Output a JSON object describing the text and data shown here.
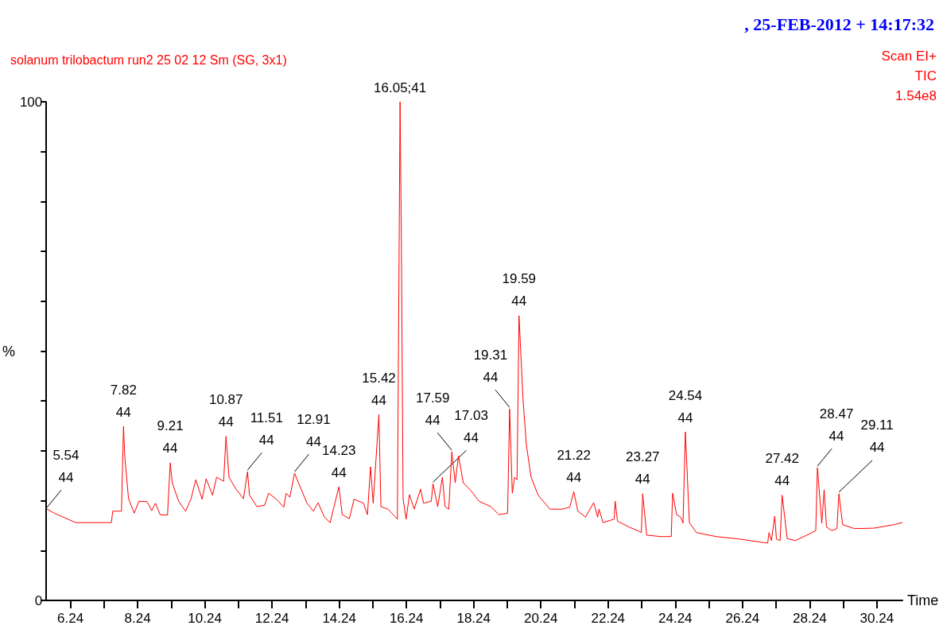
{
  "chart_data": {
    "type": "line",
    "title": "solanum trilobactum run2 25 02 12 Sm (SG, 3x1)",
    "subtitle": ", 25-FEB-2012 + 14:17:32",
    "xlabel": "Time",
    "ylabel": "%",
    "series": [
      {
        "color": "#ff0000",
        "x": [
          5.54,
          5.76,
          6.4,
          7.46,
          7.5,
          7.76,
          7.82,
          7.86,
          7.97,
          8.14,
          8.28,
          8.52,
          8.66,
          8.77,
          8.91,
          9.13,
          9.21,
          9.27,
          9.46,
          9.67,
          9.83,
          9.97,
          10.16,
          10.28,
          10.47,
          10.59,
          10.8,
          10.87,
          10.96,
          11.17,
          11.39,
          11.51,
          11.57,
          11.79,
          12.02,
          12.14,
          12.37,
          12.59,
          12.66,
          12.77,
          12.91,
          13.28,
          13.47,
          13.61,
          13.8,
          13.97,
          14.23,
          14.33,
          14.54,
          14.68,
          14.96,
          15.08,
          15.17,
          15.25,
          15.42,
          15.48,
          15.69,
          15.97,
          16.05,
          16.09,
          16.14,
          16.23,
          16.33,
          16.47,
          16.66,
          16.75,
          16.98,
          17.03,
          17.17,
          17.31,
          17.39,
          17.5,
          17.59,
          17.69,
          17.79,
          17.93,
          18.16,
          18.4,
          18.75,
          18.99,
          19.25,
          19.31,
          19.39,
          19.46,
          19.53,
          19.59,
          19.71,
          19.81,
          19.95,
          20.16,
          20.51,
          20.87,
          21.1,
          21.22,
          21.34,
          21.57,
          21.81,
          21.93,
          21.97,
          22.09,
          22.42,
          22.45,
          22.52,
          22.87,
          23.15,
          23.23,
          23.27,
          23.39,
          23.81,
          24.12,
          24.16,
          24.28,
          24.4,
          24.47,
          24.54,
          24.66,
          24.87,
          25.46,
          26.16,
          26.87,
          26.99,
          27.03,
          27.1,
          27.2,
          27.25,
          27.36,
          27.42,
          27.57,
          27.81,
          28.16,
          28.42,
          28.47,
          28.6,
          28.67,
          28.74,
          28.9,
          29.05,
          29.11,
          29.22,
          29.57,
          30.16,
          30.75,
          30.99
        ],
        "values": [
          18.3,
          17.5,
          15.6,
          15.6,
          17.9,
          17.9,
          34.9,
          28.7,
          20.4,
          17.5,
          19.9,
          19.8,
          18.0,
          19.5,
          17.2,
          17.1,
          27.6,
          23.6,
          19.9,
          17.9,
          20.4,
          24.2,
          20.3,
          24.4,
          21.1,
          24.7,
          23.9,
          32.9,
          24.7,
          22.3,
          20.4,
          25.8,
          21.1,
          18.8,
          19.1,
          21.5,
          20.3,
          18.7,
          21.5,
          20.7,
          25.5,
          19.5,
          17.9,
          19.6,
          16.7,
          15.6,
          22.8,
          17.2,
          16.4,
          20.3,
          19.5,
          17.2,
          26.8,
          19.5,
          37.3,
          18.8,
          18.3,
          16.3,
          100,
          71.0,
          20.4,
          16.3,
          21.2,
          18.3,
          22.3,
          19.5,
          19.9,
          23.4,
          18.8,
          24.7,
          18.8,
          18.3,
          29.8,
          23.6,
          29.0,
          23.6,
          22.0,
          19.9,
          18.8,
          17.2,
          17.5,
          38.4,
          21.5,
          24.7,
          24.2,
          57.1,
          40.2,
          31.1,
          24.7,
          21.1,
          18.3,
          18.3,
          18.7,
          21.8,
          17.9,
          16.7,
          19.6,
          16.7,
          18.3,
          15.6,
          16.3,
          19.9,
          15.9,
          14.7,
          13.9,
          13.6,
          21.4,
          13.1,
          12.8,
          12.8,
          21.5,
          17.2,
          16.7,
          15.5,
          33.8,
          15.6,
          13.6,
          12.8,
          12.3,
          11.6,
          11.5,
          13.6,
          12.0,
          16.9,
          12.3,
          12.0,
          21.1,
          12.4,
          12.0,
          13.1,
          14.0,
          26.6,
          15.5,
          22.2,
          14.7,
          14.0,
          14.4,
          21.4,
          15.2,
          14.4,
          14.5,
          15.2,
          15.6
        ]
      }
    ],
    "xlim": [
      5.5,
      31.0
    ],
    "xticks": [
      6.24,
      {
        "value": 7.24,
        "label": null
      },
      8.24,
      {
        "value": 9.24,
        "label": null
      },
      10.24,
      {
        "value": 11.24,
        "label": null
      },
      12.24,
      {
        "value": 13.24,
        "label": null
      },
      14.24,
      {
        "value": 15.24,
        "label": null
      },
      16.24,
      {
        "value": 17.24,
        "label": null
      },
      18.24,
      {
        "value": 19.24,
        "label": null
      },
      20.24,
      {
        "value": 21.24,
        "label": null
      },
      22.24,
      {
        "value": 23.24,
        "label": null
      },
      24.24,
      {
        "value": 25.24,
        "label": null
      },
      26.24,
      {
        "value": 27.24,
        "label": null
      },
      28.24,
      {
        "value": 29.24,
        "label": null
      },
      30.24
    ],
    "ylim": [
      0,
      100
    ],
    "yticks": [
      0,
      {
        "value": 10,
        "label": null
      },
      {
        "value": 20,
        "label": null
      },
      {
        "value": 30,
        "label": null
      },
      {
        "value": 40,
        "label": null
      },
      {
        "value": 50,
        "label": null
      },
      {
        "value": 60,
        "label": null
      },
      {
        "value": 70,
        "label": null
      },
      {
        "value": 80,
        "label": null
      },
      {
        "value": 90,
        "label": null
      },
      100
    ],
    "grid": false,
    "marker": "none",
    "line_style": "solid",
    "annotations": [
      "Scan EI+",
      "TIC",
      "1.54e8",
      {
        "text": "5.54\n44",
        "x": 5.54,
        "y": 18.3
      },
      {
        "text": "7.82\n44",
        "x": 7.82,
        "y": 34.9
      },
      {
        "text": "9.21\n44",
        "x": 9.21,
        "y": 27.6
      },
      {
        "text": "10.87\n44",
        "x": 10.87,
        "y": 32.9
      },
      {
        "text": "11.51\n44",
        "x": 11.51,
        "y": 25.8
      },
      {
        "text": "12.91\n44",
        "x": 12.91,
        "y": 25.5
      },
      {
        "text": "14.23\n44",
        "x": 14.23,
        "y": 22.8
      },
      {
        "text": "15.42\n44",
        "x": 15.42,
        "y": 37.3
      },
      {
        "text": "16.05;41",
        "x": 16.05,
        "y": 100
      },
      {
        "text": "17.03\n44",
        "x": 17.03,
        "y": 23.4
      },
      {
        "text": "17.59\n44",
        "x": 17.59,
        "y": 29.8
      },
      {
        "text": "19.31\n44",
        "x": 19.31,
        "y": 38.4
      },
      {
        "text": "19.59\n44",
        "x": 19.59,
        "y": 57.1
      },
      {
        "text": "21.22\n44",
        "x": 21.22,
        "y": 21.8
      },
      {
        "text": "23.27\n44",
        "x": 23.27,
        "y": 21.4
      },
      {
        "text": "24.54\n44",
        "x": 24.54,
        "y": 33.8
      },
      {
        "text": "27.42\n44",
        "x": 27.42,
        "y": 21.1
      },
      {
        "text": "28.47\n44",
        "x": 28.47,
        "y": 26.6
      },
      {
        "text": "29.11\n44",
        "x": 29.11,
        "y": 21.4
      }
    ]
  }
}
